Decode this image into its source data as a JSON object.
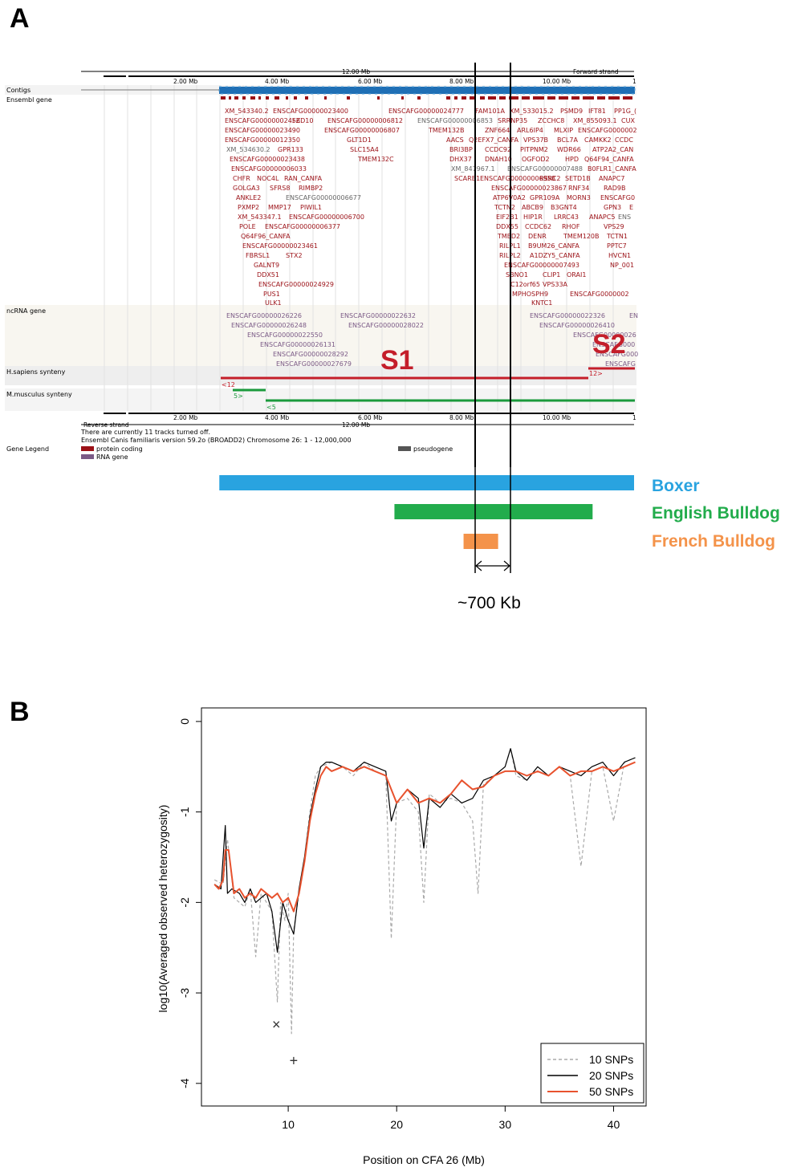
{
  "panel_a": {
    "letter": "A",
    "scale_label_top": "12.00 Mb",
    "forward_strand": "Forward strand",
    "reverse_strand": "Reverse strand",
    "scale_label_bottom": "12.00 Mb",
    "ticks": [
      "2.00 Mb",
      "4.00 Mb",
      "6.00 Mb",
      "8.00 Mb",
      "10.00 Mb",
      "1"
    ],
    "tracks": {
      "contigs": "Contigs",
      "ensembl_gene": "Ensembl gene",
      "ncrna_gene": "ncRNA gene",
      "hsapiens_synteny": "H.sapiens synteny",
      "mmusculus_synteny": "M.musculus synteny",
      "gene_legend": "Gene Legend"
    },
    "gene_rows": [
      [
        "XM_543340.2",
        "ENSCAFG00000023400",
        "ENSCAFG00000024777",
        "FAM101A",
        "XM_533015.2",
        "PSMD9",
        "IFT81",
        "PP1G_("
      ],
      [
        "ENSCAFG00000002456",
        "FZD10",
        "ENSCAFG00000006812",
        "ENSCAFG00000006853",
        "SRRNP35",
        "ZCCHC8",
        "XM_855093.1",
        "CUX"
      ],
      [
        "ENSCAFG00000023490",
        "ENSCAFG00000006807",
        "TMEM132B",
        "ZNF664",
        "ARL6IP4",
        "MLXIP",
        "ENSCAFG0000002"
      ],
      [
        "ENSCAFG00000012350",
        "GLT1D1",
        "AACS",
        "Q2EFX7_CANFA",
        "VPS37B",
        "BCL7A",
        "CAMKK2",
        "CCDC"
      ],
      [
        "XM_534630.2",
        "GPR133",
        "SLC15A4",
        "BRI3BP",
        "CCDC92",
        "PITPNM2",
        "WDR66",
        "ATP2A2_CAN"
      ],
      [
        "ENSCAFG00000023438",
        "TMEM132C",
        "DHX37",
        "DNAH10",
        "OGFOD2",
        "HPD",
        "Q64F94_CANFA"
      ],
      [
        "ENSCAFG00000006033",
        "XM_847967.1",
        "ENSCAFG00000007488",
        "B0FLR1_CANFA"
      ],
      [
        "CHFR",
        "NOC4L",
        "RAN_CANFA",
        "SCARB1",
        "ENSCAFG00000006958",
        "RSRC2",
        "SETD1B",
        "ANAPC7"
      ],
      [
        "GOLGA3",
        "SFRS8",
        "RIMBP2",
        "ENSCAFG00000023867",
        "RNF34",
        "RAD9B"
      ],
      [
        "ANKLE2",
        "ENSCAFG00000006677",
        "ATP6V0A2",
        "GPR109A",
        "MORN3",
        "ENSCAFG0"
      ],
      [
        "PXMP2",
        "MMP17",
        "PIWIL1",
        "TCTN2",
        "ABCB9",
        "B3GNT4",
        "GPN3",
        "E"
      ],
      [
        "XM_543347.1",
        "ENSCAFG00000006700",
        "EIF2B1",
        "HIP1R",
        "LRRC43",
        "ANAPC5",
        "ENS"
      ],
      [
        "POLE",
        "ENSCAFG00000006377",
        "DDX55",
        "CCDC62",
        "RHOF",
        "VPS29"
      ],
      [
        "Q64F96_CANFA",
        "TMED2",
        "DENR",
        "TMEM120B",
        "TCTN1"
      ],
      [
        "ENSCAFG00000023461",
        "RILPL1",
        "B9UM26_CANFA",
        "PPTC7"
      ],
      [
        "FBRSL1",
        "STX2",
        "RILPL2",
        "A1DZY5_CANFA",
        "HVCN1"
      ],
      [
        "GALNT9",
        "ENSCAFG00000007493",
        "NP_001"
      ],
      [
        "DDX51",
        "SBNO1",
        "CLIP1",
        "ORAI1"
      ],
      [
        "ENSCAFG00000024929",
        "C12orf65",
        "VPS33A"
      ],
      [
        "PUS1",
        "MPHOSPH9",
        "ENSCAFG0000002"
      ],
      [
        "ULK1",
        "KNTC1"
      ]
    ],
    "ncrna_rows": [
      [
        "ENSCAFG00000026226",
        "ENSCAFG00000022632",
        "ENSCAFG00000022326",
        "EN"
      ],
      [
        "ENSCAFG00000026248",
        "ENSCAFG00000028022",
        "ENSCAFG00000026410"
      ],
      [
        "ENSCAFG00000022550",
        "ENSCAFG00000026"
      ],
      [
        "ENSCAFG00000026131",
        "ENSCAFG000"
      ],
      [
        "ENSCAFG00000028292",
        "ENSCAFG000"
      ],
      [
        "ENSCAFG00000027679",
        "ENSCAFG"
      ]
    ],
    "synteny": {
      "s1": "S1",
      "s2": "S2",
      "h_left": "<12",
      "h_right": "12>",
      "m_left": "5>",
      "m_right": "<5"
    },
    "footer_line1": "There are currently 11 tracks turned off.",
    "footer_line2": "Ensembl Canis familiaris version 59.2o (BROADD2) Chromosome 26: 1 - 12,000,000",
    "legend": {
      "protein_coding": "protein coding",
      "rna_gene": "RNA gene",
      "pseudogene": "pseudogene"
    },
    "breeds": [
      {
        "name": "Boxer",
        "color": "#29a3e0",
        "start_mb": 3.0,
        "end_mb": 12.0
      },
      {
        "name": "English Bulldog",
        "color": "#22ac4c",
        "start_mb": 6.8,
        "end_mb": 11.1
      },
      {
        "name": "French Bulldog",
        "color": "#f4934a",
        "start_mb": 8.3,
        "end_mb": 9.05
      }
    ],
    "interval_label": "~700 Kb",
    "colors": {
      "protein_coding": "#9b1016",
      "rna_gene": "#7b5a86",
      "human_synteny": "#c41e2a",
      "mouse_synteny": "#1a9a3c",
      "contig": "#1f6fb5"
    }
  },
  "panel_b": {
    "letter": "B"
  },
  "chart_data": {
    "type": "line",
    "title": "",
    "xlabel": "Position on CFA 26 (Mb)",
    "ylabel": "log10(Averaged observed heterozygosity)",
    "xlim": [
      2,
      43
    ],
    "ylim": [
      -4.25,
      0.15
    ],
    "x_ticks": [
      10,
      20,
      30,
      40
    ],
    "y_ticks": [
      0,
      -1,
      -2,
      -3,
      -4
    ],
    "legend_position": "bottom-right",
    "series": [
      {
        "name": "10 SNPs",
        "color": "#aaaaaa",
        "style": "dashed",
        "x": [
          3.2,
          4,
          4.4,
          5,
          6,
          6.5,
          7,
          7.5,
          8,
          8.5,
          9,
          9.3,
          9.7,
          10,
          10.3,
          10.5,
          11,
          11.5,
          12,
          12.5,
          13,
          14,
          15,
          16,
          17,
          18,
          19,
          19.5,
          20,
          21,
          22,
          22.5,
          23,
          24,
          25,
          26,
          27,
          27.5,
          28,
          29,
          30,
          30.5,
          31,
          32,
          33,
          34,
          35,
          36,
          37,
          38,
          39,
          40,
          41,
          42
        ],
        "y": [
          -1.75,
          -1.8,
          -1.3,
          -1.95,
          -2.05,
          -1.85,
          -2.6,
          -1.9,
          -2.0,
          -2.1,
          -3.1,
          -2.0,
          -2.2,
          -1.9,
          -3.45,
          -2.3,
          -1.9,
          -1.5,
          -1.0,
          -0.6,
          -0.5,
          -0.45,
          -0.5,
          -0.6,
          -0.45,
          -0.55,
          -0.6,
          -2.4,
          -0.9,
          -0.85,
          -1.0,
          -2.0,
          -0.8,
          -0.9,
          -0.85,
          -0.9,
          -1.1,
          -1.9,
          -0.7,
          -0.6,
          -0.5,
          -0.3,
          -0.6,
          -0.65,
          -0.5,
          -0.6,
          -0.5,
          -0.6,
          -1.6,
          -0.55,
          -0.5,
          -1.1,
          -0.45,
          -0.4
        ]
      },
      {
        "name": "20 SNPs",
        "color": "#000000",
        "style": "solid",
        "x": [
          3.2,
          3.8,
          4.2,
          4.4,
          4.8,
          5.5,
          6,
          6.5,
          7,
          7.5,
          8,
          8.5,
          9,
          9.5,
          10,
          10.5,
          11,
          11.5,
          12,
          12.5,
          13,
          13.5,
          14,
          15,
          16,
          17,
          18,
          19,
          19.5,
          20,
          21,
          22,
          22.5,
          23,
          24,
          25,
          26,
          27,
          28,
          29,
          30,
          30.5,
          31,
          32,
          33,
          34,
          35,
          36,
          37,
          38,
          39,
          40,
          41,
          42
        ],
        "y": [
          -1.8,
          -1.85,
          -1.15,
          -1.9,
          -1.85,
          -1.9,
          -2.0,
          -1.85,
          -2.0,
          -1.95,
          -1.9,
          -2.1,
          -2.55,
          -2.0,
          -2.2,
          -2.35,
          -1.85,
          -1.5,
          -1.05,
          -0.75,
          -0.5,
          -0.45,
          -0.45,
          -0.5,
          -0.55,
          -0.45,
          -0.5,
          -0.55,
          -1.1,
          -0.9,
          -0.75,
          -0.85,
          -1.4,
          -0.85,
          -0.95,
          -0.8,
          -0.9,
          -0.85,
          -0.65,
          -0.6,
          -0.5,
          -0.3,
          -0.55,
          -0.65,
          -0.5,
          -0.6,
          -0.5,
          -0.55,
          -0.6,
          -0.5,
          -0.45,
          -0.6,
          -0.45,
          -0.4
        ]
      },
      {
        "name": "50 SNPs",
        "color": "#e8522e",
        "style": "solid",
        "x": [
          3.2,
          3.6,
          4,
          4.2,
          4.5,
          5,
          5.5,
          6,
          6.5,
          7,
          7.5,
          8,
          8.5,
          9,
          9.5,
          10,
          10.5,
          11,
          11.5,
          12,
          12.5,
          13,
          13.5,
          14,
          15,
          16,
          17,
          18,
          19,
          20,
          21,
          22,
          23,
          24,
          25,
          26,
          27,
          28,
          29,
          30,
          31,
          32,
          33,
          34,
          35,
          36,
          37,
          38,
          39,
          40,
          41,
          42
        ],
        "y": [
          -1.8,
          -1.85,
          -1.75,
          -1.42,
          -1.42,
          -1.9,
          -1.85,
          -1.95,
          -1.9,
          -1.95,
          -1.85,
          -1.9,
          -1.95,
          -1.9,
          -2.0,
          -1.95,
          -2.1,
          -1.9,
          -1.55,
          -1.1,
          -0.8,
          -0.6,
          -0.5,
          -0.55,
          -0.5,
          -0.55,
          -0.5,
          -0.55,
          -0.6,
          -0.9,
          -0.75,
          -0.9,
          -0.85,
          -0.9,
          -0.8,
          -0.65,
          -0.75,
          -0.72,
          -0.6,
          -0.55,
          -0.55,
          -0.6,
          -0.55,
          -0.6,
          -0.5,
          -0.6,
          -0.55,
          -0.55,
          -0.5,
          -0.55,
          -0.5,
          -0.45
        ]
      }
    ],
    "markers": [
      {
        "symbol": "×",
        "x": 8.9,
        "y": -3.35
      },
      {
        "symbol": "+",
        "x": 10.5,
        "y": -3.75
      }
    ]
  }
}
